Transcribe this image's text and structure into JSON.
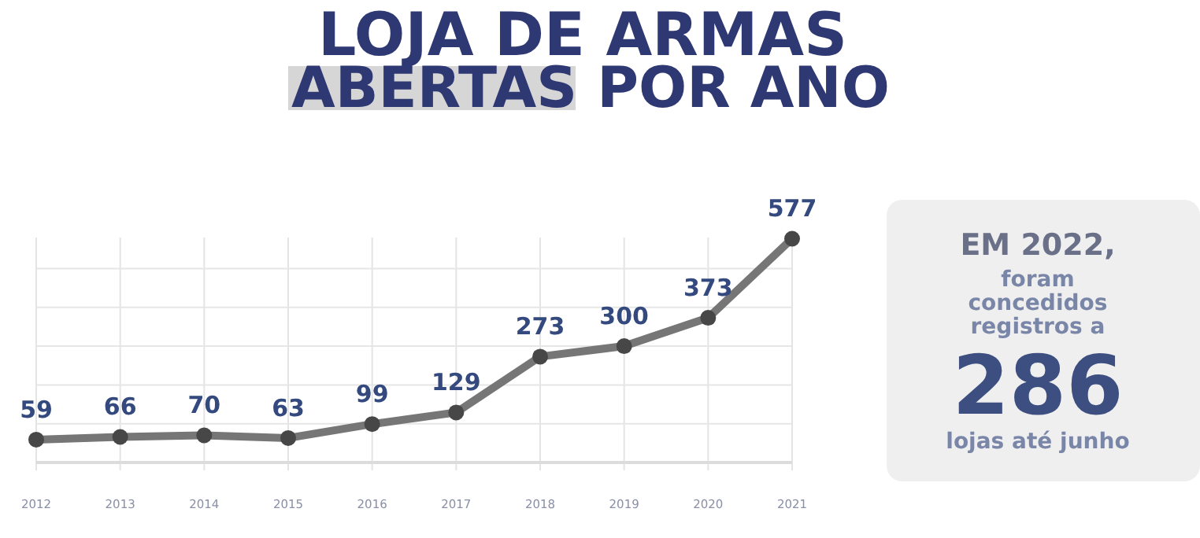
{
  "chart_data": [
    {
      "type": "line",
      "title": "LOJA DE ARMAS ABERTAS POR ANO",
      "categories": [
        "2012",
        "2013",
        "2014",
        "2015",
        "2016",
        "2017",
        "2018",
        "2019",
        "2020",
        "2021"
      ],
      "series": [
        {
          "color": "#767676",
          "values": [
            59,
            66,
            70,
            63,
            99,
            129,
            273,
            300,
            373,
            577
          ]
        }
      ],
      "ylim": [
        0,
        580
      ],
      "yticks": [
        {
          "value": 0,
          "label": null
        },
        {
          "value": 100,
          "label": null
        },
        {
          "value": 200,
          "label": null
        },
        {
          "value": 300,
          "label": null
        },
        {
          "value": 400,
          "label": null
        },
        {
          "value": 500,
          "label": null
        }
      ],
      "tick_labels": "x",
      "grid": true,
      "marker": "circle",
      "line_style": "solid",
      "data_labels": true
    },
    {
      "type": "other",
      "title": "EM 2022,",
      "annotations": [
        "foram",
        "concedidos",
        "registros a",
        "286",
        "lojas até junho"
      ]
    }
  ]
}
